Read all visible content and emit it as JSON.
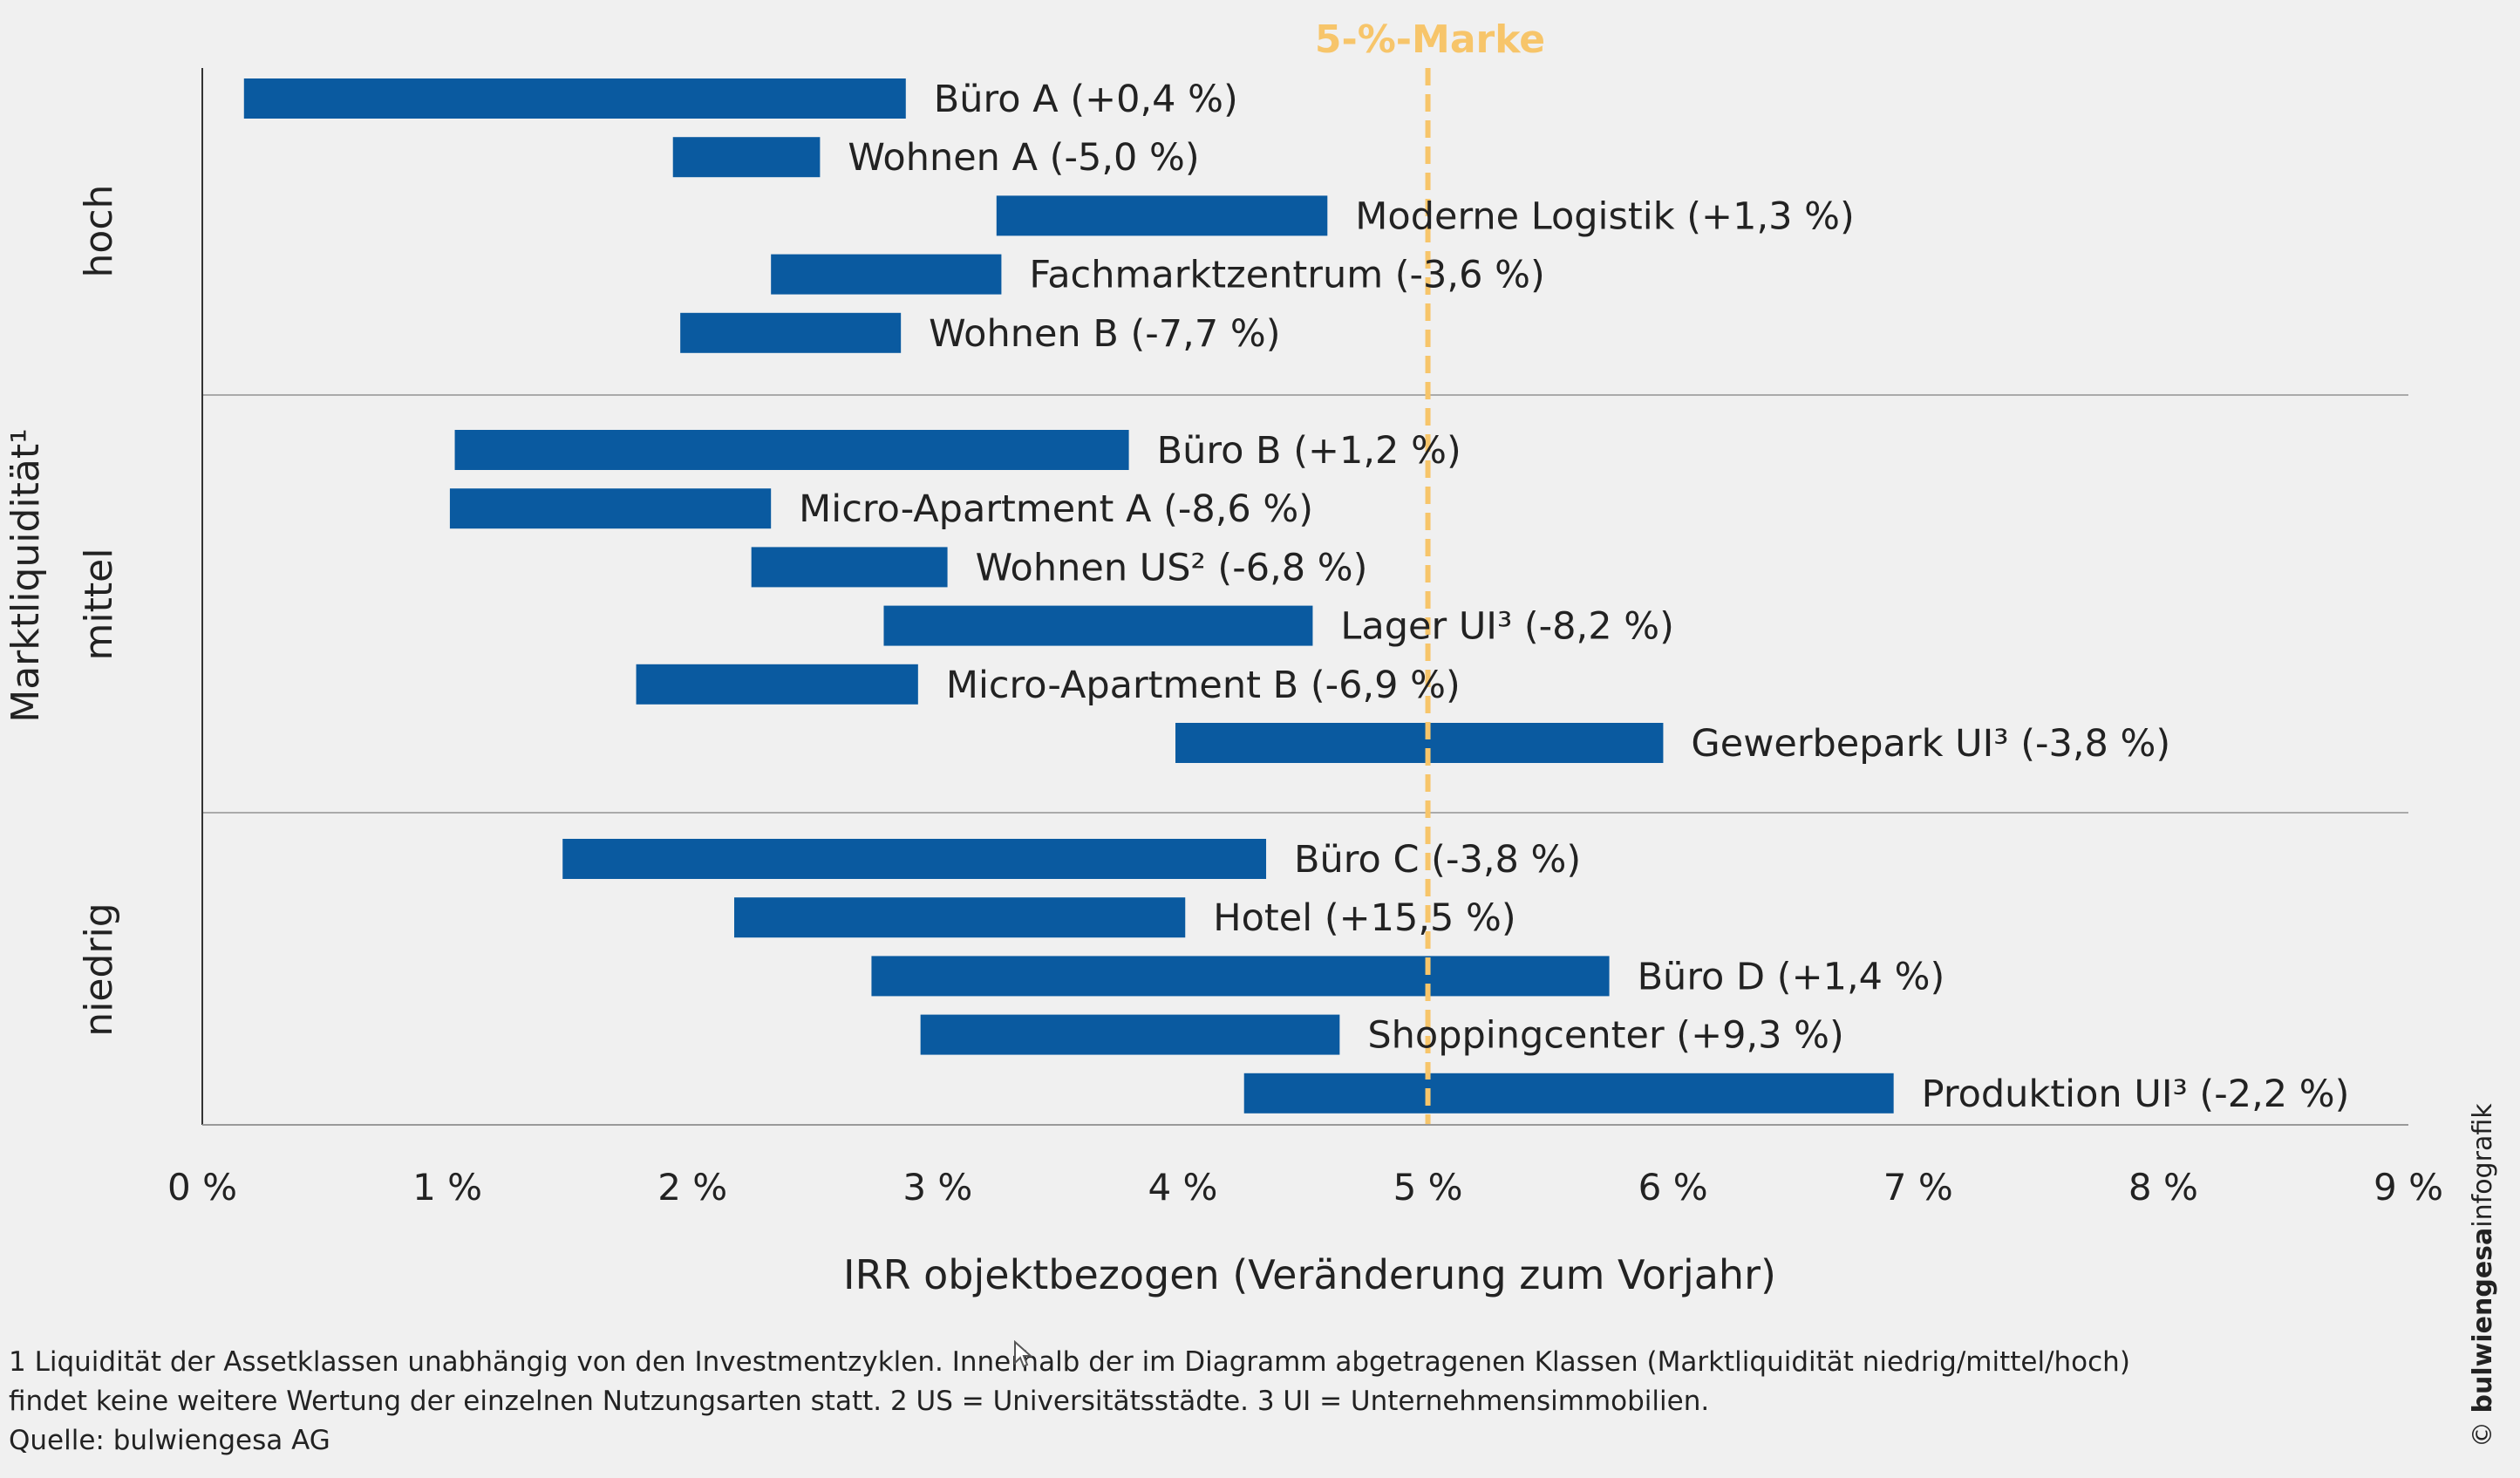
{
  "chart_data": {
    "type": "bar",
    "subtype": "floating-range-horizontal",
    "xlabel": "IRR objektbezogen (Veränderung zum Vorjahr)",
    "ylabel": "Marktliquidität¹",
    "xlim": [
      0,
      9
    ],
    "xticks": [
      "0 %",
      "1 %",
      "2 %",
      "3 %",
      "4 %",
      "5 %",
      "6 %",
      "7 %",
      "8 %",
      "9 %"
    ],
    "bar_color": "#0a5aa0",
    "reference_line": {
      "x": 5,
      "label": "5-%-Marke",
      "color": "#f7c56a"
    },
    "groups": [
      {
        "name": "hoch",
        "bars": [
          {
            "label": "Büro A (+0,4 %)",
            "from": 0.17,
            "to": 2.87
          },
          {
            "label": "Wohnen A (-5,0 %)",
            "from": 1.92,
            "to": 2.52
          },
          {
            "label": "Moderne Logistik (+1,3 %)",
            "from": 3.24,
            "to": 4.59
          },
          {
            "label": "Fachmarktzentrum (-3,6 %)",
            "from": 2.32,
            "to": 3.26
          },
          {
            "label": "Wohnen B (-7,7 %)",
            "from": 1.95,
            "to": 2.85
          }
        ]
      },
      {
        "name": "mittel",
        "bars": [
          {
            "label": "Büro B (+1,2 %)",
            "from": 1.03,
            "to": 3.78
          },
          {
            "label": "Micro-Apartment A (-8,6 %)",
            "from": 1.01,
            "to": 2.32
          },
          {
            "label": "Wohnen US² (-6,8 %)",
            "from": 2.24,
            "to": 3.04
          },
          {
            "label": "Lager UI³ (-8,2 %)",
            "from": 2.78,
            "to": 4.53
          },
          {
            "label": "Micro-Apartment B (-6,9 %)",
            "from": 1.77,
            "to": 2.92
          },
          {
            "label": "Gewerbepark UI³ (-3,8 %)",
            "from": 3.97,
            "to": 5.96
          }
        ]
      },
      {
        "name": "niedrig",
        "bars": [
          {
            "label": "Büro C (-3,8 %)",
            "from": 1.47,
            "to": 4.34
          },
          {
            "label": "Hotel (+15,5 %)",
            "from": 2.17,
            "to": 4.01
          },
          {
            "label": "Büro D (+1,4 %)",
            "from": 2.73,
            "to": 5.74
          },
          {
            "label": "Shoppingcenter (+9,3 %)",
            "from": 2.93,
            "to": 4.64
          },
          {
            "label": "Produktion UI³ (-2,2 %)",
            "from": 4.25,
            "to": 6.9
          }
        ]
      }
    ]
  },
  "footnotes": [
    "1 Liquidität der Assetklassen unabhängig von den Investmentzyklen. Innerhalb der im Diagramm abgetragenen Klassen (Marktliquidität niedrig/mittel/hoch)",
    "findet keine weitere Wertung der einzelnen Nutzungsarten statt. 2 US = Universitätsstädte. 3 UI = Unternehmensimmobilien.",
    "Quelle: bulwiengesa AG"
  ],
  "credit": {
    "bold": "bulwiengesa",
    "rest": "infografik",
    "prefix": "© "
  }
}
